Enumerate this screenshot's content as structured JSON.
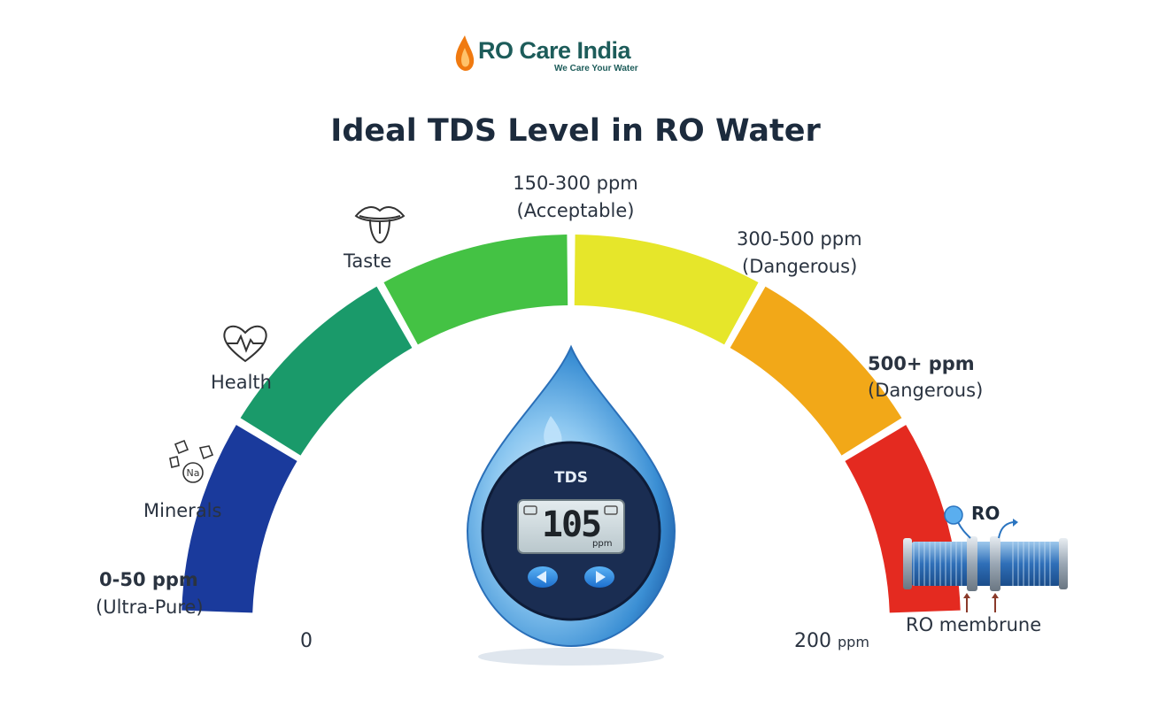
{
  "brand": {
    "name": "RO Care India",
    "tagline": "We Care Your Water",
    "accent": "#1d5c5a",
    "flame_color": "#f07a10"
  },
  "title": "Ideal TDS Level in RO Water",
  "gauge": {
    "segment_colors": [
      "#1a3a9c",
      "#1a9a6a",
      "#44c244",
      "#e6e62a",
      "#f2a818",
      "#e42a20"
    ],
    "scale_start": "0",
    "scale_end_value": "200",
    "scale_end_unit": "ppm",
    "zones": [
      {
        "range": "0-50 ppm",
        "note": "(Ultra-Pure)"
      },
      {
        "range": "150-300 ppm",
        "note": "(Acceptable)"
      },
      {
        "range": "300-500 ppm",
        "note": "(Dangerous)"
      },
      {
        "range": "500+ ppm",
        "note": "(Dangerous)"
      }
    ],
    "benefits": [
      {
        "label": "Minerals",
        "icon": "minerals-icon"
      },
      {
        "label": "Health",
        "icon": "heart-pulse-icon"
      },
      {
        "label": "Taste",
        "icon": "tongue-icon"
      }
    ]
  },
  "meter": {
    "label": "TDS",
    "reading": "105",
    "unit": "ppm"
  },
  "ro": {
    "badge": "RO",
    "caption": "RO membrune",
    "icon": "ro-membrane-icon"
  }
}
